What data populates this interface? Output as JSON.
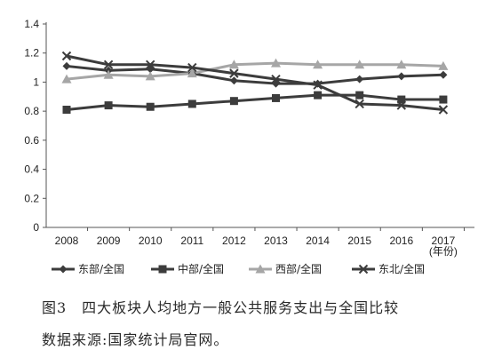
{
  "chart_data": {
    "type": "line",
    "categories": [
      "2008",
      "2009",
      "2010",
      "2011",
      "2012",
      "2013",
      "2014",
      "2015",
      "2016",
      "2017"
    ],
    "x_unit_label": "(年份)",
    "ylim": [
      0,
      1.4
    ],
    "yticks": [
      "0",
      "0.2",
      "0.4",
      "0.6",
      "0.8",
      "1",
      "1.2",
      "1.4"
    ],
    "grid": false,
    "legend_position": "bottom",
    "series": [
      {
        "name": "东部/全国",
        "marker": "diamond",
        "color": "#3c3c3c",
        "values": [
          1.11,
          1.08,
          1.09,
          1.06,
          1.01,
          0.99,
          0.99,
          1.02,
          1.04,
          1.05
        ]
      },
      {
        "name": "中部/全国",
        "marker": "square",
        "color": "#3c3c3c",
        "values": [
          0.81,
          0.84,
          0.83,
          0.85,
          0.87,
          0.89,
          0.91,
          0.91,
          0.88,
          0.88
        ]
      },
      {
        "name": "西部/全国",
        "marker": "triangle",
        "color": "#a6a6a6",
        "values": [
          1.02,
          1.05,
          1.04,
          1.06,
          1.12,
          1.13,
          1.12,
          1.12,
          1.12,
          1.11
        ]
      },
      {
        "name": "东北/全国",
        "marker": "x",
        "color": "#3c3c3c",
        "values": [
          1.18,
          1.12,
          1.12,
          1.1,
          1.06,
          1.02,
          0.98,
          0.85,
          0.84,
          0.81
        ]
      }
    ]
  },
  "caption": {
    "title": "图3　四大板块人均地方一般公共服务支出与全国比较",
    "source": "数据来源:国家统计局官网。"
  }
}
